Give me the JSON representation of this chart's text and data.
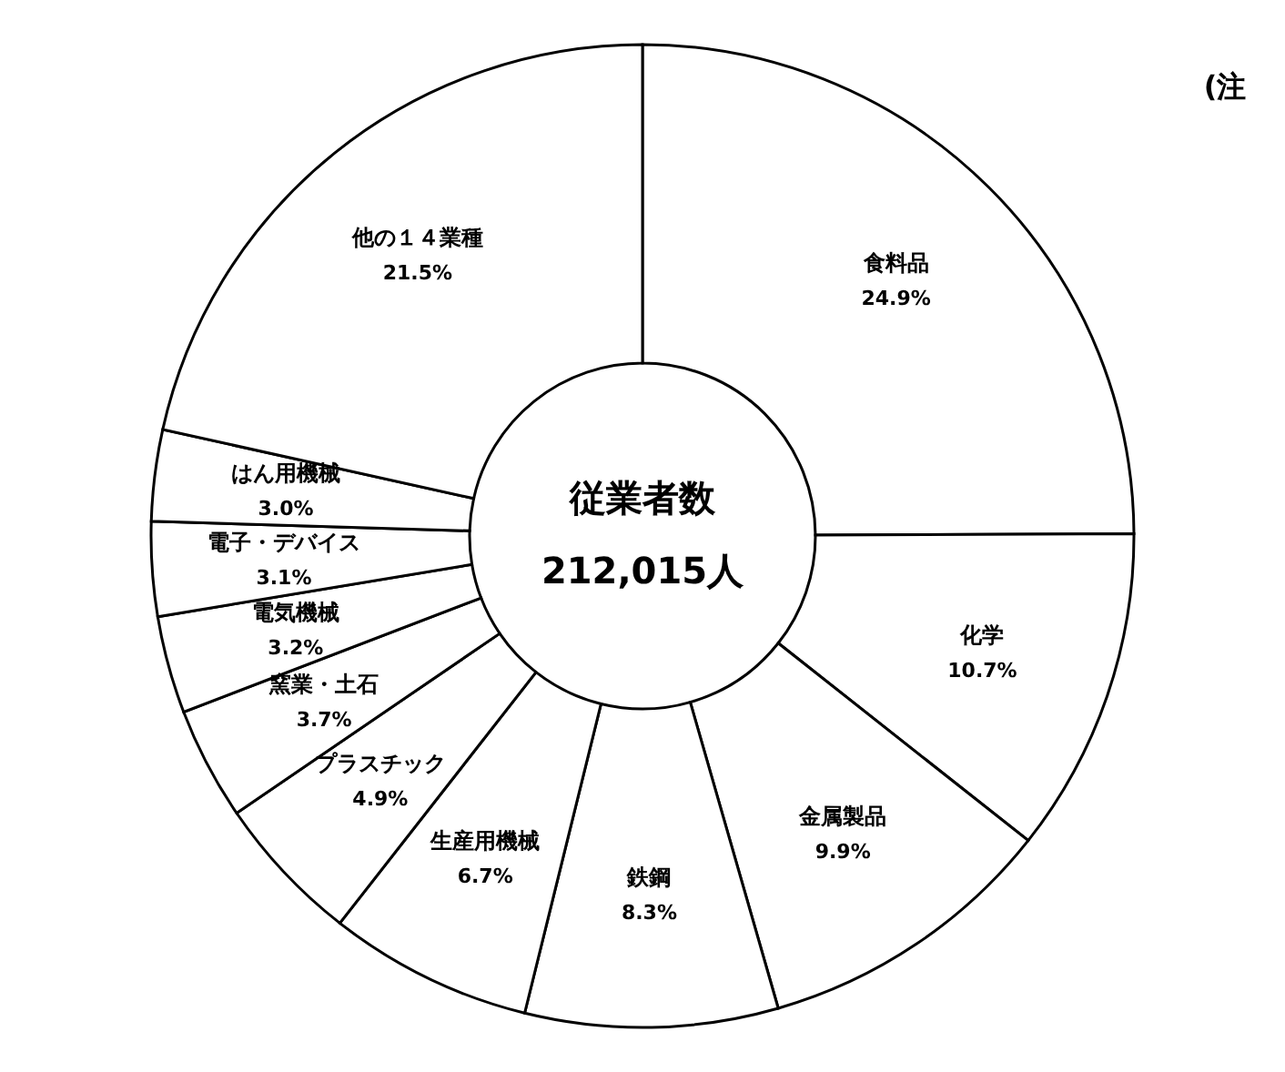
{
  "chart_data": {
    "type": "donut",
    "categories": [
      "食料品",
      "化学",
      "金属製品",
      "鉄鋼",
      "生産用機械",
      "プラスチック",
      "窯業・土石",
      "電気機械",
      "電子・デバイス",
      "はん用機械",
      "他の１４業種"
    ],
    "values": [
      24.9,
      10.7,
      9.9,
      8.3,
      6.7,
      4.9,
      3.7,
      3.2,
      3.1,
      3.0,
      21.5
    ],
    "value_labels": [
      "24.9%",
      "10.7%",
      "9.9%",
      "8.3%",
      "6.7%",
      "4.9%",
      "3.7%",
      "3.2%",
      "3.1%",
      "3.0%",
      "21.5%"
    ],
    "colors": [
      "#ffffff",
      "#ffffff",
      "#ffffff",
      "#ffffff",
      "#ffffff",
      "#ffffff",
      "#ffffff",
      "#ffffff",
      "#ffffff",
      "#ffffff",
      "#ffffff"
    ],
    "annotations": [
      "従業者数",
      "212,015人",
      "(注"
    ]
  }
}
